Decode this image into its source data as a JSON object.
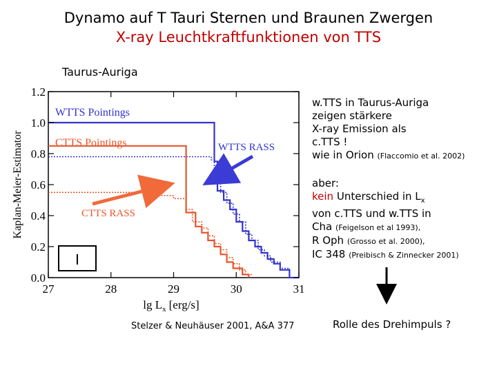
{
  "header": {
    "title": "Dynamo auf T Tauri Sternen und Braunen Zwergen",
    "subtitle": "X-ray Leuchtkraftfunktionen von TTS"
  },
  "region_label": "Taurus-Auriga",
  "colors": {
    "red": "#c00000",
    "blue": "#3333cc",
    "orange": "#e8542a",
    "box_blue": "#3b3bd6",
    "box_orange": "#f06a3a"
  },
  "chart_data": {
    "type": "line",
    "xlabel": "lg L",
    "xlabel_sub": "x",
    "xlabel_unit": "[erg/s]",
    "ylabel": "Kaplan-Meier-Estimator",
    "xlim": [
      27,
      31
    ],
    "ylim": [
      0,
      1.2
    ],
    "xticks": [
      "27",
      "28",
      "29",
      "30",
      "31"
    ],
    "yticks": [
      "0.0",
      "0.2",
      "0.4",
      "0.6",
      "0.8",
      "1.0",
      "1.2"
    ],
    "xtick_values": [
      27,
      28,
      29,
      30,
      31
    ],
    "ytick_values": [
      0,
      0.2,
      0.4,
      0.6,
      0.8,
      1.0,
      1.2
    ],
    "series": [
      {
        "name": "WTTS Pointings",
        "color": "#3333cc",
        "style": "solid",
        "x": [
          27,
          29.65,
          29.65,
          29.7,
          29.7,
          29.8,
          29.8,
          29.9,
          29.9,
          30.0,
          30.0,
          30.1,
          30.1,
          30.2,
          30.2,
          30.3,
          30.3,
          30.4,
          30.4,
          30.5,
          30.5,
          30.6,
          30.6,
          30.7,
          30.7,
          30.85,
          30.85,
          31.0
        ],
        "y": [
          1.0,
          1.0,
          0.75,
          0.75,
          0.56,
          0.56,
          0.5,
          0.5,
          0.44,
          0.44,
          0.36,
          0.36,
          0.3,
          0.3,
          0.24,
          0.24,
          0.2,
          0.2,
          0.16,
          0.16,
          0.12,
          0.12,
          0.09,
          0.09,
          0.05,
          0.05,
          0.0,
          0.0
        ]
      },
      {
        "name": "WTTS RASS",
        "color": "#3333cc",
        "style": "dotted",
        "x": [
          27,
          29.6,
          29.6,
          29.65,
          29.65,
          29.75,
          29.75,
          29.85,
          29.85,
          29.95,
          29.95,
          30.05,
          30.05,
          30.15,
          30.15,
          30.25,
          30.25,
          30.35,
          30.35,
          30.45,
          30.45,
          30.55,
          30.55,
          30.7,
          30.7,
          30.85,
          30.85,
          31.0
        ],
        "y": [
          0.78,
          0.78,
          0.76,
          0.76,
          0.62,
          0.62,
          0.55,
          0.55,
          0.48,
          0.48,
          0.41,
          0.41,
          0.36,
          0.36,
          0.28,
          0.28,
          0.24,
          0.24,
          0.18,
          0.18,
          0.14,
          0.14,
          0.1,
          0.1,
          0.06,
          0.06,
          0.0,
          0.0
        ]
      },
      {
        "name": "CTTS Pointings",
        "color": "#e8542a",
        "style": "solid",
        "x": [
          27,
          29.2,
          29.2,
          29.35,
          29.35,
          29.45,
          29.45,
          29.55,
          29.55,
          29.65,
          29.65,
          29.75,
          29.75,
          29.85,
          29.85,
          29.95,
          29.95,
          30.1,
          30.1,
          30.2,
          30.2
        ],
        "y": [
          0.85,
          0.85,
          0.42,
          0.42,
          0.33,
          0.33,
          0.29,
          0.29,
          0.24,
          0.24,
          0.2,
          0.2,
          0.15,
          0.15,
          0.1,
          0.1,
          0.06,
          0.06,
          0.02,
          0.02,
          0.0
        ]
      },
      {
        "name": "CTTS RASS",
        "color": "#e8542a",
        "style": "dotted",
        "x": [
          27,
          28.7,
          28.7,
          29.0,
          29.0,
          29.2,
          29.2,
          29.3,
          29.3,
          29.45,
          29.45,
          29.55,
          29.55,
          29.65,
          29.65,
          29.75,
          29.75,
          29.85,
          29.85,
          29.95,
          29.95,
          30.05,
          30.05,
          30.15,
          30.15,
          30.25
        ],
        "y": [
          0.55,
          0.55,
          0.53,
          0.53,
          0.51,
          0.51,
          0.44,
          0.44,
          0.36,
          0.36,
          0.32,
          0.32,
          0.27,
          0.27,
          0.22,
          0.22,
          0.18,
          0.18,
          0.13,
          0.13,
          0.09,
          0.09,
          0.05,
          0.05,
          0.02,
          0.02
        ]
      }
    ],
    "annotations": [
      {
        "text": "WTTS Pointings",
        "color": "#3333cc"
      },
      {
        "text": "CTTS Pointings",
        "color": "#e8542a"
      },
      {
        "text": "WTTS RASS",
        "color": "#3333cc"
      },
      {
        "text": "CTTS RASS",
        "color": "#e8542a"
      }
    ],
    "panel_label": "I"
  },
  "bullets": {
    "b1_line1": "w.TTS in Taurus-Auriga",
    "b1_line2": "zeigen stärkere",
    "b1_line3": "X-ray Emission als",
    "b1_line4": "c.TTS !",
    "b1_line5_main": "wie in Orion",
    "b1_line5_cite": "(Flaccomio et al. 2002)",
    "b2_line1": "aber:",
    "b2_line2_red": "kein",
    "b2_line2_rest": "Unterschied in L",
    "b2_line2_sub": "x",
    "b2_line3": "von c.TTS und w.TTS in",
    "b2_line4_main": "Cha",
    "b2_line4_cite": "(Feigelson et al 1993),",
    "b2_line5_main": "R Oph",
    "b2_line5_cite": "(Grosso et al. 2000),",
    "b2_line6_main": "IC 348",
    "b2_line6_cite": "(Preibisch & Zinnecker 2001)"
  },
  "footer": {
    "citation": "Stelzer & Neuhäuser 2001, A&A 377",
    "conclusion": "Rolle des Drehimpuls ?"
  }
}
